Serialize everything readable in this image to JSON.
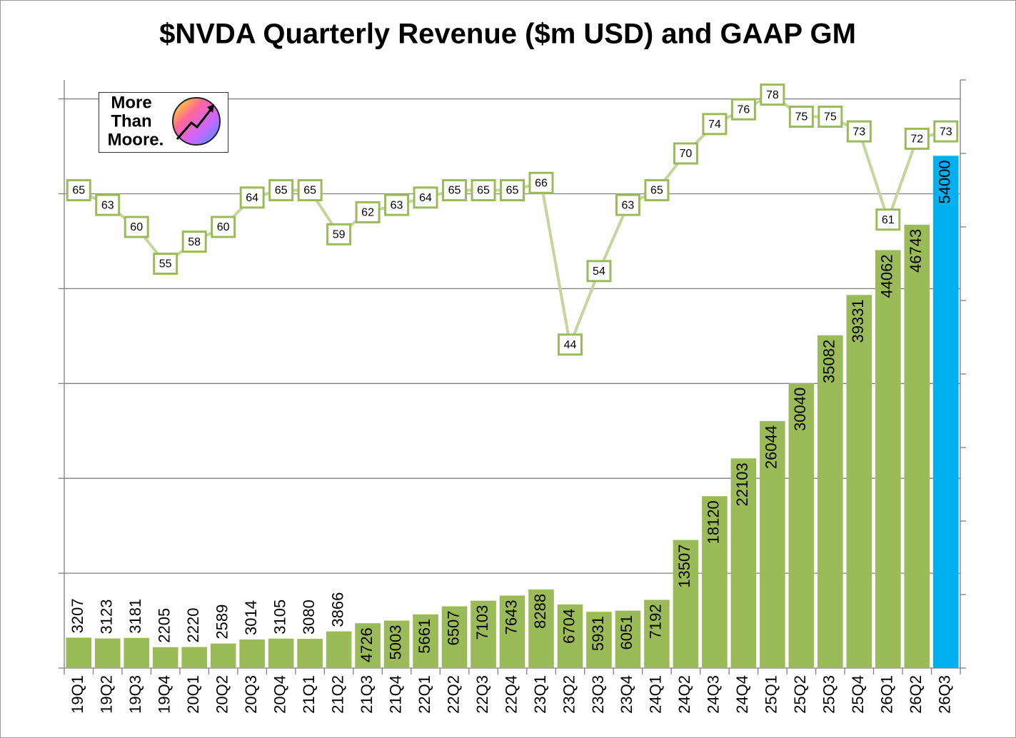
{
  "chart_data": {
    "type": "bar",
    "title": "$NVDA Quarterly Revenue ($m USD) and GAAP GM",
    "categories": [
      "19Q1",
      "19Q2",
      "19Q3",
      "19Q4",
      "20Q1",
      "20Q2",
      "20Q3",
      "20Q4",
      "21Q1",
      "21Q2",
      "21Q3",
      "21Q4",
      "22Q1",
      "22Q2",
      "22Q3",
      "22Q4",
      "23Q1",
      "23Q2",
      "23Q3",
      "23Q4",
      "24Q1",
      "24Q2",
      "24Q3",
      "24Q4",
      "25Q1",
      "25Q2",
      "25Q3",
      "25Q4",
      "26Q1",
      "26Q2",
      "26Q3"
    ],
    "series": [
      {
        "type": "bar",
        "colors": [
          "#9bbb59",
          "#9bbb59",
          "#9bbb59",
          "#9bbb59",
          "#9bbb59",
          "#9bbb59",
          "#9bbb59",
          "#9bbb59",
          "#9bbb59",
          "#9bbb59",
          "#9bbb59",
          "#9bbb59",
          "#9bbb59",
          "#9bbb59",
          "#9bbb59",
          "#9bbb59",
          "#9bbb59",
          "#9bbb59",
          "#9bbb59",
          "#9bbb59",
          "#9bbb59",
          "#9bbb59",
          "#9bbb59",
          "#9bbb59",
          "#9bbb59",
          "#9bbb59",
          "#9bbb59",
          "#9bbb59",
          "#9bbb59",
          "#9bbb59",
          "#00b0f0"
        ],
        "values": [
          3207,
          3123,
          3181,
          2205,
          2220,
          2589,
          3014,
          3105,
          3080,
          3866,
          4726,
          5003,
          5661,
          6507,
          7103,
          7643,
          8288,
          6704,
          5931,
          6051,
          7192,
          13507,
          18120,
          22103,
          26044,
          30040,
          35082,
          39331,
          44062,
          46743,
          54000
        ]
      },
      {
        "type": "line",
        "axis": "y2",
        "color": "#c3d69b",
        "marker_edge_color": "#9bbb59",
        "values": [
          65,
          63,
          60,
          55,
          58,
          60,
          64,
          65,
          65,
          59,
          62,
          63,
          64,
          65,
          65,
          65,
          66,
          44,
          54,
          63,
          65,
          70,
          74,
          76,
          78,
          75,
          75,
          73,
          61,
          72,
          73
        ]
      }
    ],
    "ylim": [
      0,
      62000
    ],
    "yticks": [
      0,
      10000,
      20000,
      30000,
      40000,
      50000,
      60000
    ],
    "y2lim": [
      0,
      80
    ],
    "y2ticks": [
      0,
      10,
      20,
      30,
      40,
      50,
      60,
      70,
      80
    ],
    "grid": true
  },
  "logo": {
    "lines": [
      "More",
      "Than",
      "Moore."
    ]
  }
}
